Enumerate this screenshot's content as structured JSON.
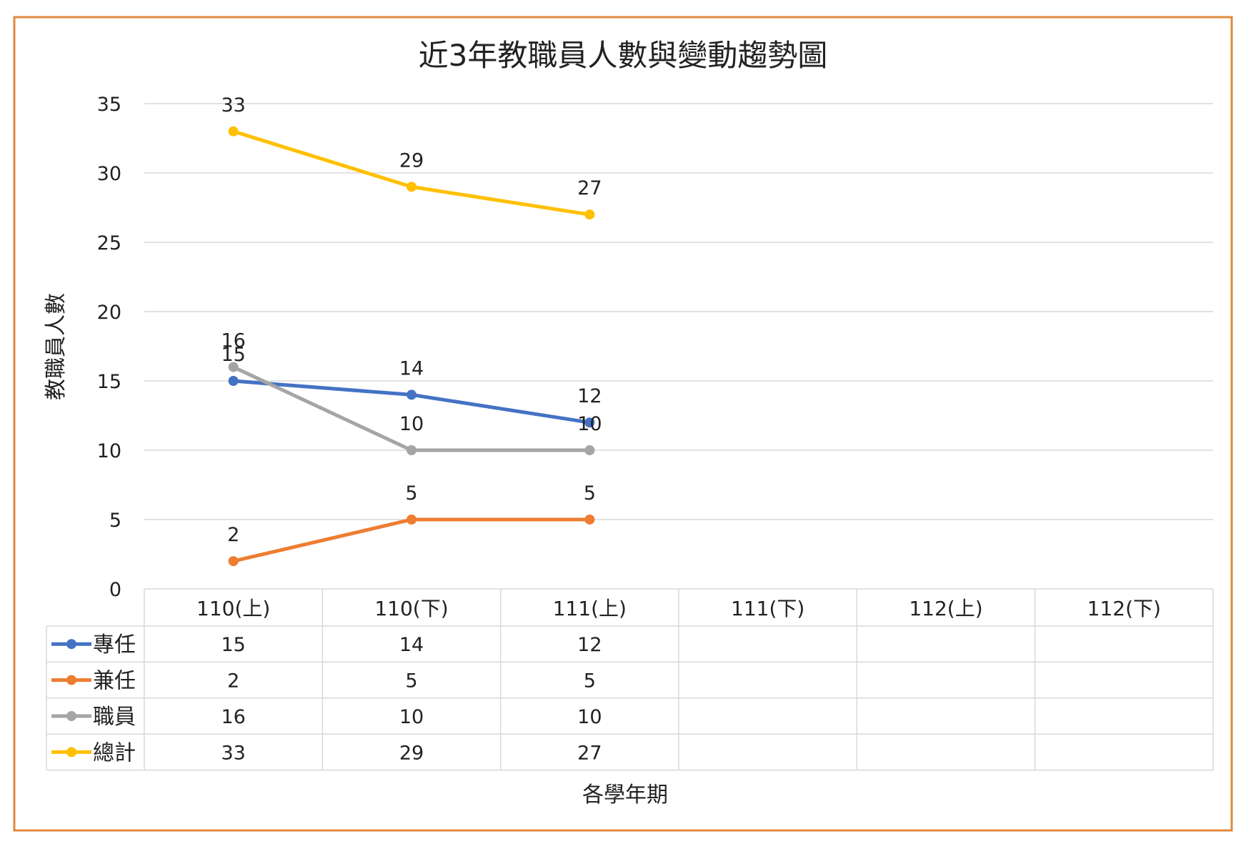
{
  "chart_data": {
    "type": "line",
    "title": "近3年教職員人數與變動趨勢圖",
    "xlabel": "各學年期",
    "ylabel": "教職員人數",
    "ylim": [
      0,
      35
    ],
    "yticks": [
      0,
      5,
      10,
      15,
      20,
      25,
      30,
      35
    ],
    "grid": true,
    "legend": "data-table",
    "categories": [
      "110(上)",
      "110(下)",
      "111(上)",
      "111(下)",
      "112(上)",
      "112(下)"
    ],
    "series": [
      {
        "name": "專任",
        "color": "#4472C4",
        "values": [
          15,
          14,
          12,
          null,
          null,
          null
        ]
      },
      {
        "name": "兼任",
        "color": "#ED7D31",
        "values": [
          2,
          5,
          5,
          null,
          null,
          null
        ]
      },
      {
        "name": "職員",
        "color": "#A5A5A5",
        "values": [
          16,
          10,
          10,
          null,
          null,
          null
        ]
      },
      {
        "name": "總計",
        "color": "#FFC000",
        "values": [
          33,
          29,
          27,
          null,
          null,
          null
        ]
      }
    ],
    "border_color": "#E08A3C",
    "grid_color": "#D9D9D9"
  }
}
